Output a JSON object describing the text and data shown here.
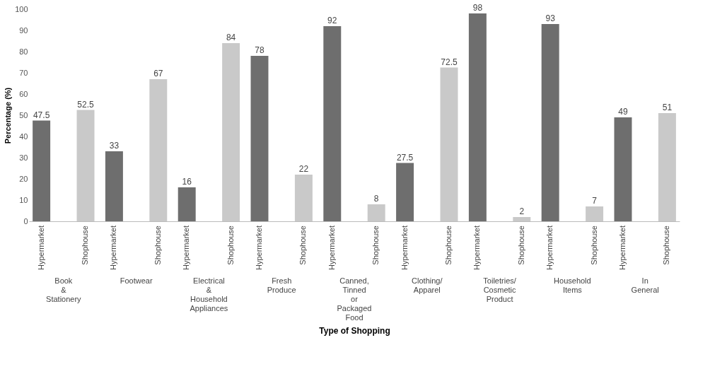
{
  "chart_data": {
    "type": "bar",
    "xlabel": "Type of Shopping",
    "ylabel": "Percentage (%)",
    "categories": [
      "Book & Stationery",
      "Footwear",
      "Electrical & Household Appliances",
      "Fresh Produce",
      "Canned, Tinned or Packaged Food",
      "Clothing/ Apparel",
      "Toiletries/ Cosmetic Product",
      "Household Items",
      "In General"
    ],
    "series": [
      {
        "name": "Hypermarket",
        "color": "#6e6e6e",
        "values": [
          47.5,
          33,
          16,
          78,
          92,
          27.5,
          98,
          93,
          49
        ]
      },
      {
        "name": "Shophouse",
        "color": "#c9c9c9",
        "values": [
          52.5,
          67,
          84,
          22,
          8,
          72.5,
          2,
          7,
          51
        ]
      }
    ],
    "ylim": [
      0,
      100
    ],
    "yticks": [
      0,
      10,
      20,
      30,
      40,
      50,
      60,
      70,
      80,
      90,
      100
    ],
    "grid": false,
    "legend": false,
    "data_labels": true
  }
}
